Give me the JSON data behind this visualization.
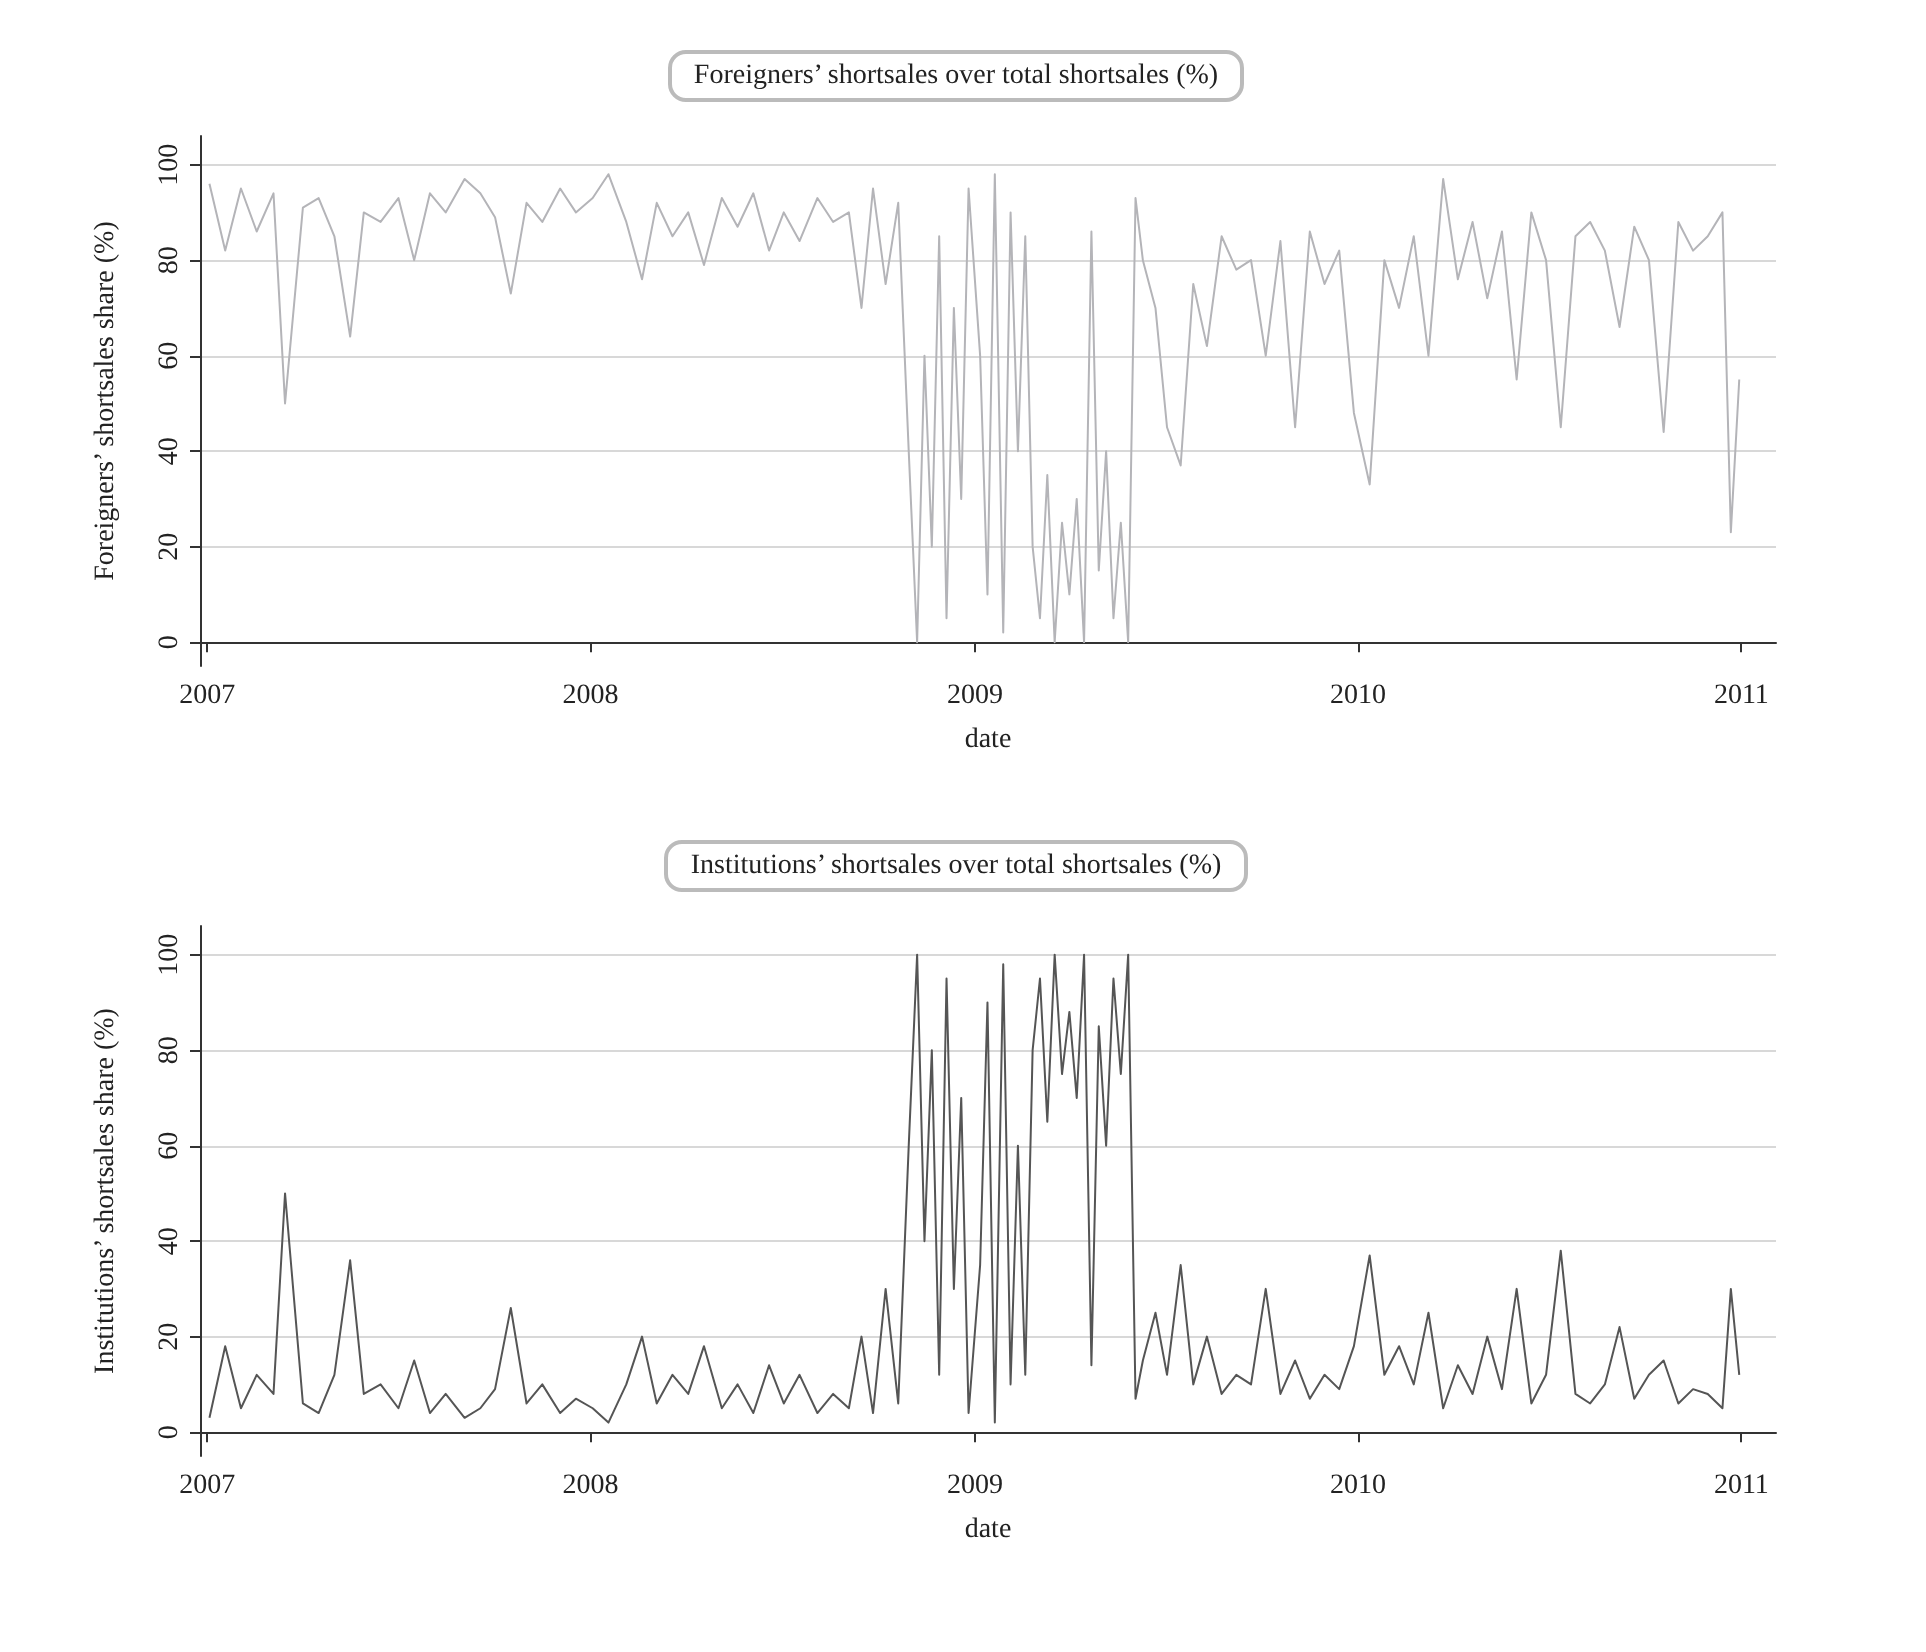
{
  "chart_data": [
    {
      "type": "line",
      "title": "Foreigners’ shortsales over total shortsales (%)",
      "xlabel": "date",
      "ylabel": "Foreigners’ shortsales share (%)",
      "grid": "y",
      "marker": "none",
      "xlim": [
        "2006-12-25",
        "2011-02-03"
      ],
      "xticks": [
        {
          "value": "2007-01-01",
          "label": "2007"
        },
        {
          "value": "2008-01-01",
          "label": "2008"
        },
        {
          "value": "2009-01-01",
          "label": "2009"
        },
        {
          "value": "2010-01-01",
          "label": "2010"
        },
        {
          "value": "2011-01-01",
          "label": "2011"
        }
      ],
      "ylim": [
        -5,
        106
      ],
      "yticks": [
        0,
        20,
        40,
        60,
        80,
        100
      ],
      "x": [
        "2007-01-03",
        "2007-01-18",
        "2007-02-02",
        "2007-02-17",
        "2007-03-05",
        "2007-03-16",
        "2007-04-02",
        "2007-04-17",
        "2007-05-02",
        "2007-05-17",
        "2007-05-30",
        "2007-06-15",
        "2007-07-02",
        "2007-07-17",
        "2007-08-01",
        "2007-08-16",
        "2007-09-03",
        "2007-09-18",
        "2007-10-02",
        "2007-10-17",
        "2007-11-01",
        "2007-11-16",
        "2007-12-03",
        "2007-12-18",
        "2008-01-03",
        "2008-01-18",
        "2008-02-04",
        "2008-02-19",
        "2008-03-04",
        "2008-03-19",
        "2008-04-03",
        "2008-04-18",
        "2008-05-05",
        "2008-05-20",
        "2008-06-04",
        "2008-06-19",
        "2008-07-03",
        "2008-07-18",
        "2008-08-04",
        "2008-08-19",
        "2008-09-03",
        "2008-09-15",
        "2008-09-26",
        "2008-10-08",
        "2008-10-20",
        "2008-10-30",
        "2008-11-07",
        "2008-11-14",
        "2008-11-21",
        "2008-11-28",
        "2008-12-05",
        "2008-12-12",
        "2008-12-19",
        "2008-12-26",
        "2009-01-06",
        "2009-01-13",
        "2009-01-20",
        "2009-01-28",
        "2009-02-04",
        "2009-02-11",
        "2009-02-18",
        "2009-02-25",
        "2009-03-04",
        "2009-03-11",
        "2009-03-18",
        "2009-03-25",
        "2009-04-01",
        "2009-04-08",
        "2009-04-15",
        "2009-04-22",
        "2009-04-29",
        "2009-05-06",
        "2009-05-13",
        "2009-05-20",
        "2009-05-27",
        "2009-06-03",
        "2009-06-10",
        "2009-06-22",
        "2009-07-03",
        "2009-07-16",
        "2009-07-28",
        "2009-08-10",
        "2009-08-24",
        "2009-09-07",
        "2009-09-21",
        "2009-10-05",
        "2009-10-19",
        "2009-11-02",
        "2009-11-16",
        "2009-11-30",
        "2009-12-14",
        "2009-12-28",
        "2010-01-12",
        "2010-01-26",
        "2010-02-09",
        "2010-02-23",
        "2010-03-09",
        "2010-03-23",
        "2010-04-06",
        "2010-04-20",
        "2010-05-04",
        "2010-05-18",
        "2010-06-01",
        "2010-06-15",
        "2010-06-29",
        "2010-07-13",
        "2010-07-27",
        "2010-08-10",
        "2010-08-24",
        "2010-09-07",
        "2010-09-21",
        "2010-10-05",
        "2010-10-19",
        "2010-11-02",
        "2010-11-16",
        "2010-11-30",
        "2010-12-14",
        "2010-12-22",
        "2010-12-30"
      ],
      "series": [
        {
          "color": "#b4b4b8",
          "values": [
            96,
            82,
            95,
            86,
            94,
            50,
            91,
            93,
            85,
            64,
            90,
            88,
            93,
            80,
            94,
            90,
            97,
            94,
            89,
            73,
            92,
            88,
            95,
            90,
            93,
            98,
            88,
            76,
            92,
            85,
            90,
            79,
            93,
            87,
            94,
            82,
            90,
            84,
            93,
            88,
            90,
            70,
            95,
            75,
            92,
            40,
            0,
            60,
            20,
            85,
            5,
            70,
            30,
            95,
            60,
            10,
            98,
            2,
            90,
            40,
            85,
            20,
            5,
            35,
            0,
            25,
            10,
            30,
            0,
            86,
            15,
            40,
            5,
            25,
            0,
            93,
            80,
            70,
            45,
            37,
            75,
            62,
            85,
            78,
            80,
            60,
            84,
            45,
            86,
            75,
            82,
            48,
            33,
            80,
            70,
            85,
            60,
            97,
            76,
            88,
            72,
            86,
            55,
            90,
            80,
            45,
            85,
            88,
            82,
            66,
            87,
            80,
            44,
            88,
            82,
            85,
            90,
            23,
            55
          ]
        }
      ]
    },
    {
      "type": "line",
      "title": "Institutions’ shortsales over total shortsales (%)",
      "xlabel": "date",
      "ylabel": "Institutions’ shortsales share (%)",
      "grid": "y",
      "marker": "none",
      "xlim": [
        "2006-12-25",
        "2011-02-03"
      ],
      "xticks": [
        {
          "value": "2007-01-01",
          "label": "2007"
        },
        {
          "value": "2008-01-01",
          "label": "2008"
        },
        {
          "value": "2009-01-01",
          "label": "2009"
        },
        {
          "value": "2010-01-01",
          "label": "2010"
        },
        {
          "value": "2011-01-01",
          "label": "2011"
        }
      ],
      "ylim": [
        -5,
        106
      ],
      "yticks": [
        0,
        20,
        40,
        60,
        80,
        100
      ],
      "x": [
        "2007-01-03",
        "2007-01-18",
        "2007-02-02",
        "2007-02-17",
        "2007-03-05",
        "2007-03-16",
        "2007-04-02",
        "2007-04-17",
        "2007-05-02",
        "2007-05-17",
        "2007-05-30",
        "2007-06-15",
        "2007-07-02",
        "2007-07-17",
        "2007-08-01",
        "2007-08-16",
        "2007-09-03",
        "2007-09-18",
        "2007-10-02",
        "2007-10-17",
        "2007-11-01",
        "2007-11-16",
        "2007-12-03",
        "2007-12-18",
        "2008-01-03",
        "2008-01-18",
        "2008-02-04",
        "2008-02-19",
        "2008-03-04",
        "2008-03-19",
        "2008-04-03",
        "2008-04-18",
        "2008-05-05",
        "2008-05-20",
        "2008-06-04",
        "2008-06-19",
        "2008-07-03",
        "2008-07-18",
        "2008-08-04",
        "2008-08-19",
        "2008-09-03",
        "2008-09-15",
        "2008-09-26",
        "2008-10-08",
        "2008-10-20",
        "2008-10-30",
        "2008-11-07",
        "2008-11-14",
        "2008-11-21",
        "2008-11-28",
        "2008-12-05",
        "2008-12-12",
        "2008-12-19",
        "2008-12-26",
        "2009-01-06",
        "2009-01-13",
        "2009-01-20",
        "2009-01-28",
        "2009-02-04",
        "2009-02-11",
        "2009-02-18",
        "2009-02-25",
        "2009-03-04",
        "2009-03-11",
        "2009-03-18",
        "2009-03-25",
        "2009-04-01",
        "2009-04-08",
        "2009-04-15",
        "2009-04-22",
        "2009-04-29",
        "2009-05-06",
        "2009-05-13",
        "2009-05-20",
        "2009-05-27",
        "2009-06-03",
        "2009-06-10",
        "2009-06-22",
        "2009-07-03",
        "2009-07-16",
        "2009-07-28",
        "2009-08-10",
        "2009-08-24",
        "2009-09-07",
        "2009-09-21",
        "2009-10-05",
        "2009-10-19",
        "2009-11-02",
        "2009-11-16",
        "2009-11-30",
        "2009-12-14",
        "2009-12-28",
        "2010-01-12",
        "2010-01-26",
        "2010-02-09",
        "2010-02-23",
        "2010-03-09",
        "2010-03-23",
        "2010-04-06",
        "2010-04-20",
        "2010-05-04",
        "2010-05-18",
        "2010-06-01",
        "2010-06-15",
        "2010-06-29",
        "2010-07-13",
        "2010-07-27",
        "2010-08-10",
        "2010-08-24",
        "2010-09-07",
        "2010-09-21",
        "2010-10-05",
        "2010-10-19",
        "2010-11-02",
        "2010-11-16",
        "2010-11-30",
        "2010-12-14",
        "2010-12-22",
        "2010-12-30"
      ],
      "series": [
        {
          "color": "#555555",
          "values": [
            3,
            18,
            5,
            12,
            8,
            50,
            6,
            4,
            12,
            36,
            8,
            10,
            5,
            15,
            4,
            8,
            3,
            5,
            9,
            26,
            6,
            10,
            4,
            7,
            5,
            2,
            10,
            20,
            6,
            12,
            8,
            18,
            5,
            10,
            4,
            14,
            6,
            12,
            4,
            8,
            5,
            20,
            4,
            30,
            6,
            60,
            100,
            40,
            80,
            12,
            95,
            30,
            70,
            4,
            35,
            90,
            2,
            98,
            10,
            60,
            12,
            80,
            95,
            65,
            100,
            75,
            88,
            70,
            100,
            14,
            85,
            60,
            95,
            75,
            100,
            7,
            15,
            25,
            12,
            35,
            10,
            20,
            8,
            12,
            10,
            30,
            8,
            15,
            7,
            12,
            9,
            18,
            37,
            12,
            18,
            10,
            25,
            5,
            14,
            8,
            20,
            9,
            30,
            6,
            12,
            38,
            8,
            6,
            10,
            22,
            7,
            12,
            15,
            6,
            9,
            8,
            5,
            30,
            12
          ]
        }
      ]
    }
  ]
}
